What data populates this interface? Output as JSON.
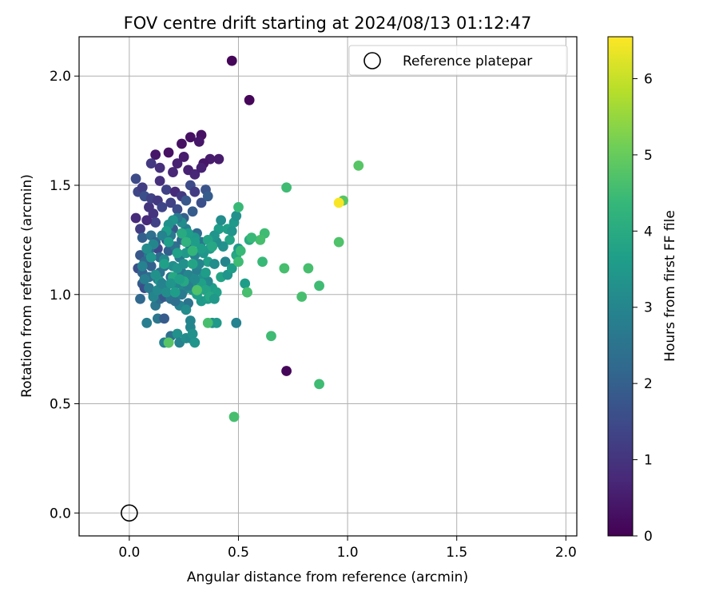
{
  "chart_data": {
    "type": "scatter",
    "title": "FOV centre drift starting at 2024/08/13 01:12:47",
    "xlabel": "Angular distance from reference (arcmin)",
    "ylabel": "Rotation from reference (arcmin)",
    "xlim": [
      -0.23,
      2.05
    ],
    "ylim": [
      -0.105,
      2.18
    ],
    "xticks": [
      0.0,
      0.5,
      1.0,
      1.5,
      2.0
    ],
    "xtick_labels": [
      "0.0",
      "0.5",
      "1.0",
      "1.5",
      "2.0"
    ],
    "yticks": [
      0.0,
      0.5,
      1.0,
      1.5,
      2.0
    ],
    "ytick_labels": [
      "0.0",
      "0.5",
      "1.0",
      "1.5",
      "2.0"
    ],
    "grid": true,
    "legend": {
      "placement": "top-right",
      "entries": [
        "Reference platepar"
      ]
    },
    "reference_point": {
      "x": 0.0,
      "y": 0.0,
      "label": "Reference platepar",
      "marker": "open-circle"
    },
    "colorbar": {
      "label": "Hours from first FF file",
      "colormap": "viridis",
      "range": [
        0,
        6.55
      ],
      "ticks": [
        0,
        1,
        2,
        3,
        4,
        5,
        6
      ],
      "tick_labels": [
        "0",
        "1",
        "2",
        "3",
        "4",
        "5",
        "6"
      ],
      "colors": [
        "#440154",
        "#482878",
        "#3e4989",
        "#31688e",
        "#26828e",
        "#1f9e89",
        "#35b779",
        "#6ece58",
        "#b5de2b",
        "#fde725"
      ]
    },
    "series": [
      {
        "points": [
          [
            0.47,
            2.07,
            0.1
          ],
          [
            0.55,
            1.89,
            0.1
          ],
          [
            0.72,
            0.65,
            0.1
          ],
          [
            0.18,
            1.65,
            0.3
          ],
          [
            0.12,
            1.64,
            0.4
          ],
          [
            0.24,
            1.69,
            0.3
          ],
          [
            0.28,
            1.72,
            0.3
          ],
          [
            0.33,
            1.73,
            0.3
          ],
          [
            0.32,
            1.7,
            0.4
          ],
          [
            0.37,
            1.62,
            0.5
          ],
          [
            0.41,
            1.62,
            0.5
          ],
          [
            0.34,
            1.6,
            0.4
          ],
          [
            0.22,
            1.6,
            0.6
          ],
          [
            0.27,
            1.57,
            0.6
          ],
          [
            0.3,
            1.55,
            0.7
          ],
          [
            0.25,
            1.63,
            0.5
          ],
          [
            0.2,
            1.56,
            0.7
          ],
          [
            0.14,
            1.58,
            0.9
          ],
          [
            0.33,
            1.58,
            0.6
          ],
          [
            0.1,
            1.6,
            1.1
          ],
          [
            0.03,
            1.35,
            0.8
          ],
          [
            0.03,
            1.53,
            1.5
          ],
          [
            0.04,
            1.47,
            1.4
          ],
          [
            0.06,
            1.49,
            1.2
          ],
          [
            0.05,
            1.3,
            1.2
          ],
          [
            0.07,
            1.45,
            1.6
          ],
          [
            0.09,
            1.4,
            1.0
          ],
          [
            0.1,
            1.44,
            1.3
          ],
          [
            0.11,
            1.37,
            1.0
          ],
          [
            0.13,
            1.43,
            1.1
          ],
          [
            0.12,
            1.33,
            1.3
          ],
          [
            0.08,
            1.34,
            0.8
          ],
          [
            0.15,
            1.4,
            1.4
          ],
          [
            0.14,
            1.52,
            0.9
          ],
          [
            0.17,
            1.48,
            1.3
          ],
          [
            0.21,
            1.47,
            0.8
          ],
          [
            0.24,
            1.45,
            1.1
          ],
          [
            0.19,
            1.42,
            1.3
          ],
          [
            0.22,
            1.39,
            1.5
          ],
          [
            0.26,
            1.43,
            1.8
          ],
          [
            0.28,
            1.5,
            1.5
          ],
          [
            0.3,
            1.47,
            1.2
          ],
          [
            0.33,
            1.42,
            1.6
          ],
          [
            0.35,
            1.48,
            1.7
          ],
          [
            0.36,
            1.45,
            1.9
          ],
          [
            0.29,
            1.38,
            1.9
          ],
          [
            0.25,
            1.35,
            2.0
          ],
          [
            0.2,
            1.3,
            1.8
          ],
          [
            0.17,
            1.25,
            1.7
          ],
          [
            0.13,
            1.21,
            1.4
          ],
          [
            0.06,
            1.26,
            2.0
          ],
          [
            0.05,
            1.18,
            1.8
          ],
          [
            0.04,
            1.12,
            1.6
          ],
          [
            0.06,
            1.1,
            2.1
          ],
          [
            0.08,
            1.15,
            1.9
          ],
          [
            0.09,
            1.2,
            2.2
          ],
          [
            0.1,
            1.27,
            2.4
          ],
          [
            0.12,
            1.24,
            2.1
          ],
          [
            0.14,
            1.17,
            2.3
          ],
          [
            0.16,
            1.13,
            2.5
          ],
          [
            0.18,
            1.2,
            2.0
          ],
          [
            0.19,
            1.27,
            2.6
          ],
          [
            0.21,
            1.22,
            2.4
          ],
          [
            0.23,
            1.17,
            2.7
          ],
          [
            0.24,
            1.25,
            2.2
          ],
          [
            0.26,
            1.3,
            2.8
          ],
          [
            0.28,
            1.22,
            2.5
          ],
          [
            0.3,
            1.18,
            2.9
          ],
          [
            0.31,
            1.28,
            2.3
          ],
          [
            0.33,
            1.24,
            2.6
          ],
          [
            0.06,
            1.05,
            1.9
          ],
          [
            0.07,
            1.03,
            1.6
          ],
          [
            0.05,
            0.98,
            2.2
          ],
          [
            0.09,
            1.08,
            2.4
          ],
          [
            0.11,
            1.01,
            2.0
          ],
          [
            0.12,
            0.95,
            2.6
          ],
          [
            0.14,
            0.98,
            2.3
          ],
          [
            0.16,
            0.99,
            1.8
          ],
          [
            0.13,
            1.07,
            2.7
          ],
          [
            0.17,
            1.04,
            2.9
          ],
          [
            0.19,
            1.08,
            2.4
          ],
          [
            0.2,
            1.0,
            2.8
          ],
          [
            0.22,
            1.05,
            3.0
          ],
          [
            0.24,
            1.1,
            2.6
          ],
          [
            0.25,
            1.02,
            3.1
          ],
          [
            0.27,
            0.96,
            2.5
          ],
          [
            0.29,
            1.06,
            3.2
          ],
          [
            0.31,
            1.11,
            2.8
          ],
          [
            0.32,
            1.03,
            3.0
          ],
          [
            0.34,
            1.08,
            3.3
          ],
          [
            0.08,
            0.87,
            2.8
          ],
          [
            0.13,
            0.89,
            2.6
          ],
          [
            0.16,
            0.89,
            1.9
          ],
          [
            0.19,
            0.81,
            2.4
          ],
          [
            0.16,
            0.78,
            2.9
          ],
          [
            0.18,
            0.78,
            3.1
          ],
          [
            0.22,
            0.82,
            3.3
          ],
          [
            0.23,
            0.78,
            2.9
          ],
          [
            0.26,
            0.8,
            3.2
          ],
          [
            0.28,
            0.8,
            3.1
          ],
          [
            0.3,
            0.78,
            3.4
          ],
          [
            0.28,
            0.85,
            3.0
          ],
          [
            0.29,
            0.82,
            3.3
          ],
          [
            0.23,
            0.95,
            2.9
          ],
          [
            0.26,
            0.93,
            3.2
          ],
          [
            0.28,
            0.88,
            3.0
          ],
          [
            0.33,
            0.97,
            3.5
          ],
          [
            0.36,
            0.98,
            3.6
          ],
          [
            0.38,
            0.87,
            3.2
          ],
          [
            0.4,
            0.87,
            3.5
          ],
          [
            0.37,
            1.0,
            3.3
          ],
          [
            0.38,
            1.03,
            3.6
          ],
          [
            0.4,
            1.01,
            3.7
          ],
          [
            0.36,
            1.06,
            3.1
          ],
          [
            0.42,
            1.08,
            3.8
          ],
          [
            0.45,
            1.09,
            3.4
          ],
          [
            0.44,
            1.15,
            3.0
          ],
          [
            0.47,
            1.12,
            3.6
          ],
          [
            0.49,
            1.18,
            3.9
          ],
          [
            0.5,
            1.21,
            3.5
          ],
          [
            0.46,
            1.25,
            3.8
          ],
          [
            0.43,
            1.22,
            3.3
          ],
          [
            0.4,
            1.24,
            3.2
          ],
          [
            0.41,
            1.3,
            3.6
          ],
          [
            0.39,
            1.27,
            3.4
          ],
          [
            0.42,
            1.34,
            3.2
          ],
          [
            0.45,
            1.3,
            3.7
          ],
          [
            0.48,
            1.33,
            3.5
          ],
          [
            0.49,
            1.36,
            3.3
          ],
          [
            0.47,
            1.29,
            3.4
          ],
          [
            0.36,
            1.15,
            3.7
          ],
          [
            0.34,
            1.19,
            3.4
          ],
          [
            0.37,
            1.21,
            3.5
          ],
          [
            0.39,
            1.14,
            3.2
          ],
          [
            0.35,
            1.1,
            3.6
          ],
          [
            0.32,
            1.14,
            3.0
          ],
          [
            0.3,
            1.26,
            3.5
          ],
          [
            0.27,
            1.28,
            3.6
          ],
          [
            0.24,
            1.33,
            3.2
          ],
          [
            0.22,
            1.35,
            2.7
          ],
          [
            0.2,
            1.34,
            3.4
          ],
          [
            0.18,
            1.32,
            3.3
          ],
          [
            0.17,
            1.29,
            3.6
          ],
          [
            0.15,
            1.27,
            2.9
          ],
          [
            0.11,
            1.23,
            3.0
          ],
          [
            0.09,
            1.18,
            2.6
          ],
          [
            0.07,
            1.15,
            2.2
          ],
          [
            0.1,
            1.13,
            2.0
          ],
          [
            0.14,
            1.1,
            2.5
          ],
          [
            0.16,
            1.16,
            3.1
          ],
          [
            0.2,
            1.13,
            3.2
          ],
          [
            0.22,
            1.12,
            3.4
          ],
          [
            0.25,
            1.14,
            3.3
          ],
          [
            0.27,
            1.09,
            3.0
          ],
          [
            0.29,
            1.02,
            3.3
          ],
          [
            0.31,
            1.0,
            3.6
          ],
          [
            0.33,
            1.05,
            3.7
          ],
          [
            0.35,
            1.02,
            3.8
          ],
          [
            0.37,
            0.99,
            3.9
          ],
          [
            0.39,
            0.98,
            3.5
          ],
          [
            0.19,
            0.98,
            2.5
          ],
          [
            0.21,
            0.97,
            2.4
          ],
          [
            0.24,
            1.0,
            2.7
          ],
          [
            0.27,
            1.04,
            2.8
          ],
          [
            0.3,
            1.07,
            3.1
          ],
          [
            0.26,
            1.19,
            3.5
          ],
          [
            0.3,
            1.24,
            3.6
          ],
          [
            0.33,
            1.21,
            3.6
          ],
          [
            0.36,
            1.25,
            3.8
          ],
          [
            0.38,
            1.22,
            3.9
          ],
          [
            0.29,
            1.14,
            3.8
          ],
          [
            0.25,
            1.06,
            3.9
          ],
          [
            0.22,
            1.19,
            3.7
          ],
          [
            0.18,
            1.24,
            3.6
          ],
          [
            0.2,
            1.08,
            3.9
          ],
          [
            0.16,
            1.14,
            3.7
          ],
          [
            0.14,
            1.06,
            3.5
          ],
          [
            0.12,
            1.09,
            3.3
          ],
          [
            0.1,
            1.17,
            3.4
          ],
          [
            0.08,
            1.21,
            3.2
          ],
          [
            0.06,
            1.13,
            2.9
          ],
          [
            0.07,
            1.07,
            2.8
          ],
          [
            0.09,
            1.03,
            2.7
          ],
          [
            0.11,
            0.99,
            3.0
          ],
          [
            0.13,
            1.02,
            3.1
          ],
          [
            0.15,
            1.05,
            2.9
          ],
          [
            0.17,
            1.01,
            3.2
          ],
          [
            0.19,
            1.05,
            3.4
          ],
          [
            0.21,
            1.01,
            3.6
          ],
          [
            0.23,
            1.07,
            3.7
          ],
          [
            0.53,
            1.05,
            3.6
          ],
          [
            0.54,
            1.01,
            3.8
          ],
          [
            0.49,
            0.87,
            2.9
          ],
          [
            0.55,
            1.25,
            4.0
          ],
          [
            0.5,
            1.4,
            4.4
          ],
          [
            0.62,
            1.28,
            4.5
          ],
          [
            0.6,
            1.25,
            4.6
          ],
          [
            0.56,
            1.26,
            4.4
          ],
          [
            0.51,
            1.2,
            4.4
          ],
          [
            0.5,
            1.15,
            4.5
          ],
          [
            0.61,
            1.15,
            4.4
          ],
          [
            0.54,
            1.01,
            4.6
          ],
          [
            0.72,
            1.49,
            4.5
          ],
          [
            0.71,
            1.12,
            4.6
          ],
          [
            0.82,
            1.12,
            4.6
          ],
          [
            0.79,
            0.99,
            4.6
          ],
          [
            0.87,
            1.04,
            4.5
          ],
          [
            0.65,
            0.81,
            4.5
          ],
          [
            0.87,
            0.59,
            4.5
          ],
          [
            0.48,
            0.44,
            4.6
          ],
          [
            0.96,
            1.24,
            4.7
          ],
          [
            0.98,
            1.43,
            4.8
          ],
          [
            1.05,
            1.59,
            4.8
          ],
          [
            0.96,
            1.42,
            6.5
          ],
          [
            0.36,
            0.87,
            4.6
          ],
          [
            0.31,
            1.02,
            4.7
          ],
          [
            0.18,
            0.78,
            4.8
          ],
          [
            0.29,
            1.2,
            4.3
          ],
          [
            0.24,
            1.28,
            4.0
          ],
          [
            0.26,
            1.24,
            4.2
          ]
        ]
      }
    ]
  }
}
